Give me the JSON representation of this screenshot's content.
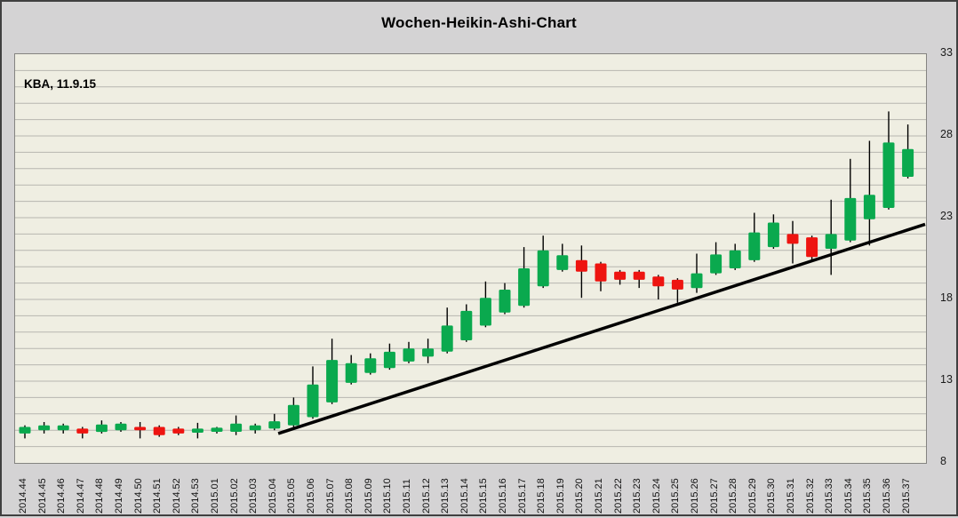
{
  "title": "Wochen-Heikin-Ashi-Chart",
  "annotation": "KBA, 11.9.15",
  "colors": {
    "up_candle": "#0aa94e",
    "down_candle": "#ee1410",
    "wick": "#000000",
    "trendline": "#000000",
    "page_background": "#d4d3d4",
    "plot_background": "#efeee2",
    "gridline": "#b7b6b0",
    "plot_border": "#848480"
  },
  "chart_data": {
    "type": "candlestick",
    "subtype": "heikin-ashi-weekly",
    "title": "Wochen-Heikin-Ashi-Chart",
    "annotation": "KBA, 11.9.15",
    "y_axis": {
      "side": "right",
      "min": 8,
      "max": 33,
      "tick_labels": [
        "33",
        "28",
        "23",
        "18",
        "13",
        "8"
      ],
      "ticks": [
        33,
        28,
        23,
        18,
        13,
        8
      ],
      "gridline_step": 1,
      "grid": true
    },
    "x_axis": {
      "label_rotation_deg": -90,
      "unit": "year.week"
    },
    "candles": [
      {
        "w": "2014.44",
        "o": 9.8,
        "h": 10.3,
        "l": 9.5,
        "c": 10.2
      },
      {
        "w": "2014.45",
        "o": 10.0,
        "h": 10.5,
        "l": 9.8,
        "c": 10.3
      },
      {
        "w": "2014.46",
        "o": 10.0,
        "h": 10.4,
        "l": 9.8,
        "c": 10.3
      },
      {
        "w": "2014.47",
        "o": 10.1,
        "h": 10.2,
        "l": 9.5,
        "c": 9.8
      },
      {
        "w": "2014.48",
        "o": 9.9,
        "h": 10.6,
        "l": 9.8,
        "c": 10.35
      },
      {
        "w": "2014.49",
        "o": 10.0,
        "h": 10.5,
        "l": 9.9,
        "c": 10.4
      },
      {
        "w": "2014.50",
        "o": 10.2,
        "h": 10.5,
        "l": 9.5,
        "c": 10.0
      },
      {
        "w": "2014.51",
        "o": 10.2,
        "h": 10.3,
        "l": 9.6,
        "c": 9.7
      },
      {
        "w": "2014.52",
        "o": 10.1,
        "h": 10.2,
        "l": 9.7,
        "c": 9.8
      },
      {
        "w": "2014.53",
        "o": 9.85,
        "h": 10.45,
        "l": 9.5,
        "c": 10.1
      },
      {
        "w": "2015.01",
        "o": 9.9,
        "h": 10.2,
        "l": 9.8,
        "c": 10.15
      },
      {
        "w": "2015.02",
        "o": 9.9,
        "h": 10.9,
        "l": 9.7,
        "c": 10.4
      },
      {
        "w": "2015.03",
        "o": 10.0,
        "h": 10.4,
        "l": 9.8,
        "c": 10.3
      },
      {
        "w": "2015.04",
        "o": 10.1,
        "h": 11.0,
        "l": 10.0,
        "c": 10.55
      },
      {
        "w": "2015.05",
        "o": 10.3,
        "h": 12.0,
        "l": 10.2,
        "c": 11.55
      },
      {
        "w": "2015.06",
        "o": 10.8,
        "h": 13.9,
        "l": 10.7,
        "c": 12.8
      },
      {
        "w": "2015.07",
        "o": 11.7,
        "h": 15.6,
        "l": 11.6,
        "c": 14.3
      },
      {
        "w": "2015.08",
        "o": 12.9,
        "h": 14.6,
        "l": 12.8,
        "c": 14.1
      },
      {
        "w": "2015.09",
        "o": 13.5,
        "h": 14.7,
        "l": 13.4,
        "c": 14.4
      },
      {
        "w": "2015.10",
        "o": 13.8,
        "h": 15.3,
        "l": 13.7,
        "c": 14.8
      },
      {
        "w": "2015.11",
        "o": 14.2,
        "h": 15.4,
        "l": 14.1,
        "c": 15.0
      },
      {
        "w": "2015.12",
        "o": 14.5,
        "h": 15.6,
        "l": 14.1,
        "c": 15.0
      },
      {
        "w": "2015.13",
        "o": 14.8,
        "h": 17.5,
        "l": 14.7,
        "c": 16.4
      },
      {
        "w": "2015.14",
        "o": 15.5,
        "h": 17.7,
        "l": 15.4,
        "c": 17.3
      },
      {
        "w": "2015.15",
        "o": 16.4,
        "h": 19.1,
        "l": 16.3,
        "c": 18.1
      },
      {
        "w": "2015.16",
        "o": 17.2,
        "h": 19.0,
        "l": 17.1,
        "c": 18.6
      },
      {
        "w": "2015.17",
        "o": 17.6,
        "h": 21.2,
        "l": 17.5,
        "c": 19.9
      },
      {
        "w": "2015.18",
        "o": 18.8,
        "h": 21.9,
        "l": 18.7,
        "c": 21.0
      },
      {
        "w": "2015.19",
        "o": 19.8,
        "h": 21.4,
        "l": 19.7,
        "c": 20.7
      },
      {
        "w": "2015.20",
        "o": 20.4,
        "h": 21.3,
        "l": 18.1,
        "c": 19.7
      },
      {
        "w": "2015.21",
        "o": 20.2,
        "h": 20.3,
        "l": 18.5,
        "c": 19.1
      },
      {
        "w": "2015.22",
        "o": 19.7,
        "h": 19.8,
        "l": 18.9,
        "c": 19.2
      },
      {
        "w": "2015.23",
        "o": 19.7,
        "h": 19.8,
        "l": 18.7,
        "c": 19.2
      },
      {
        "w": "2015.24",
        "o": 19.4,
        "h": 19.5,
        "l": 18.0,
        "c": 18.8
      },
      {
        "w": "2015.25",
        "o": 19.2,
        "h": 19.3,
        "l": 17.8,
        "c": 18.6
      },
      {
        "w": "2015.26",
        "o": 18.7,
        "h": 20.8,
        "l": 18.4,
        "c": 19.6
      },
      {
        "w": "2015.27",
        "o": 19.6,
        "h": 21.5,
        "l": 19.5,
        "c": 20.75
      },
      {
        "w": "2015.28",
        "o": 19.9,
        "h": 21.4,
        "l": 19.8,
        "c": 21.0
      },
      {
        "w": "2015.29",
        "o": 20.4,
        "h": 23.3,
        "l": 20.3,
        "c": 22.1
      },
      {
        "w": "2015.30",
        "o": 21.2,
        "h": 23.2,
        "l": 21.1,
        "c": 22.7
      },
      {
        "w": "2015.31",
        "o": 22.0,
        "h": 22.8,
        "l": 20.2,
        "c": 21.4
      },
      {
        "w": "2015.32",
        "o": 21.8,
        "h": 21.9,
        "l": 20.3,
        "c": 20.6
      },
      {
        "w": "2015.33",
        "o": 21.1,
        "h": 24.1,
        "l": 19.5,
        "c": 22.0
      },
      {
        "w": "2015.34",
        "o": 21.6,
        "h": 26.6,
        "l": 21.5,
        "c": 24.2
      },
      {
        "w": "2015.35",
        "o": 22.9,
        "h": 27.7,
        "l": 21.3,
        "c": 24.4
      },
      {
        "w": "2015.36",
        "o": 23.6,
        "h": 29.5,
        "l": 23.5,
        "c": 27.6
      },
      {
        "w": "2015.37",
        "o": 25.5,
        "h": 28.7,
        "l": 25.4,
        "c": 27.2
      }
    ],
    "trendline": {
      "from_index": 13.2,
      "from_value": 9.8,
      "to_index": 46.9,
      "to_value": 22.6
    },
    "legend": null
  }
}
